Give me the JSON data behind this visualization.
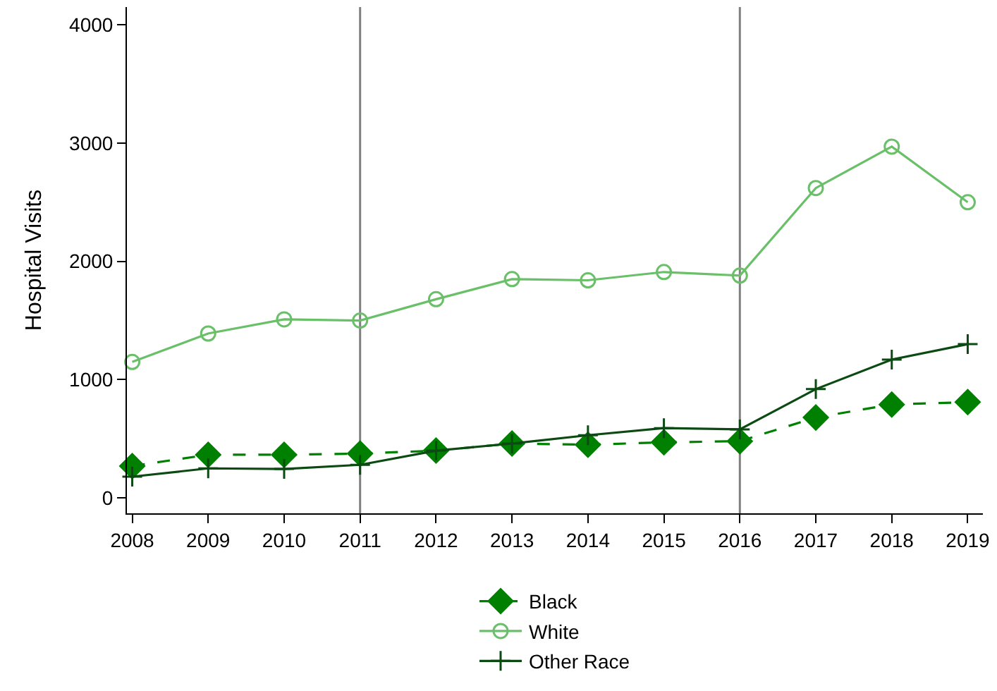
{
  "chart_data": {
    "type": "line",
    "ylabel": "Hospital Visits",
    "x": [
      2008,
      2009,
      2010,
      2011,
      2012,
      2013,
      2014,
      2015,
      2016,
      2017,
      2018,
      2019
    ],
    "series": [
      {
        "name": "Black",
        "color": "#008000",
        "marker": "diamond",
        "line_style": "dashed",
        "values": [
          270,
          365,
          365,
          375,
          400,
          460,
          450,
          470,
          480,
          680,
          790,
          810
        ]
      },
      {
        "name": "White",
        "color": "#6abf69",
        "marker": "circle-open",
        "line_style": "solid",
        "values": [
          1150,
          1390,
          1510,
          1500,
          1680,
          1850,
          1840,
          1910,
          1880,
          2620,
          2970,
          2500
        ]
      },
      {
        "name": "Other Race",
        "color": "#0b4a12",
        "marker": "cross",
        "line_style": "solid",
        "values": [
          180,
          250,
          245,
          280,
          400,
          460,
          530,
          590,
          580,
          920,
          1170,
          1300
        ]
      }
    ],
    "xlim": [
      2007.93,
      2019.2
    ],
    "xticks": [
      2008,
      2009,
      2010,
      2011,
      2012,
      2013,
      2014,
      2015,
      2016,
      2017,
      2018,
      2019
    ],
    "ylim": [
      -130,
      4150
    ],
    "yticks": [
      0,
      1000,
      2000,
      3000,
      4000
    ],
    "ref_lines": [
      {
        "axis": "x",
        "value": 2011,
        "color": "#808080"
      },
      {
        "axis": "x",
        "value": 2016,
        "color": "#808080"
      }
    ],
    "grid": false,
    "legend": "bottom"
  }
}
